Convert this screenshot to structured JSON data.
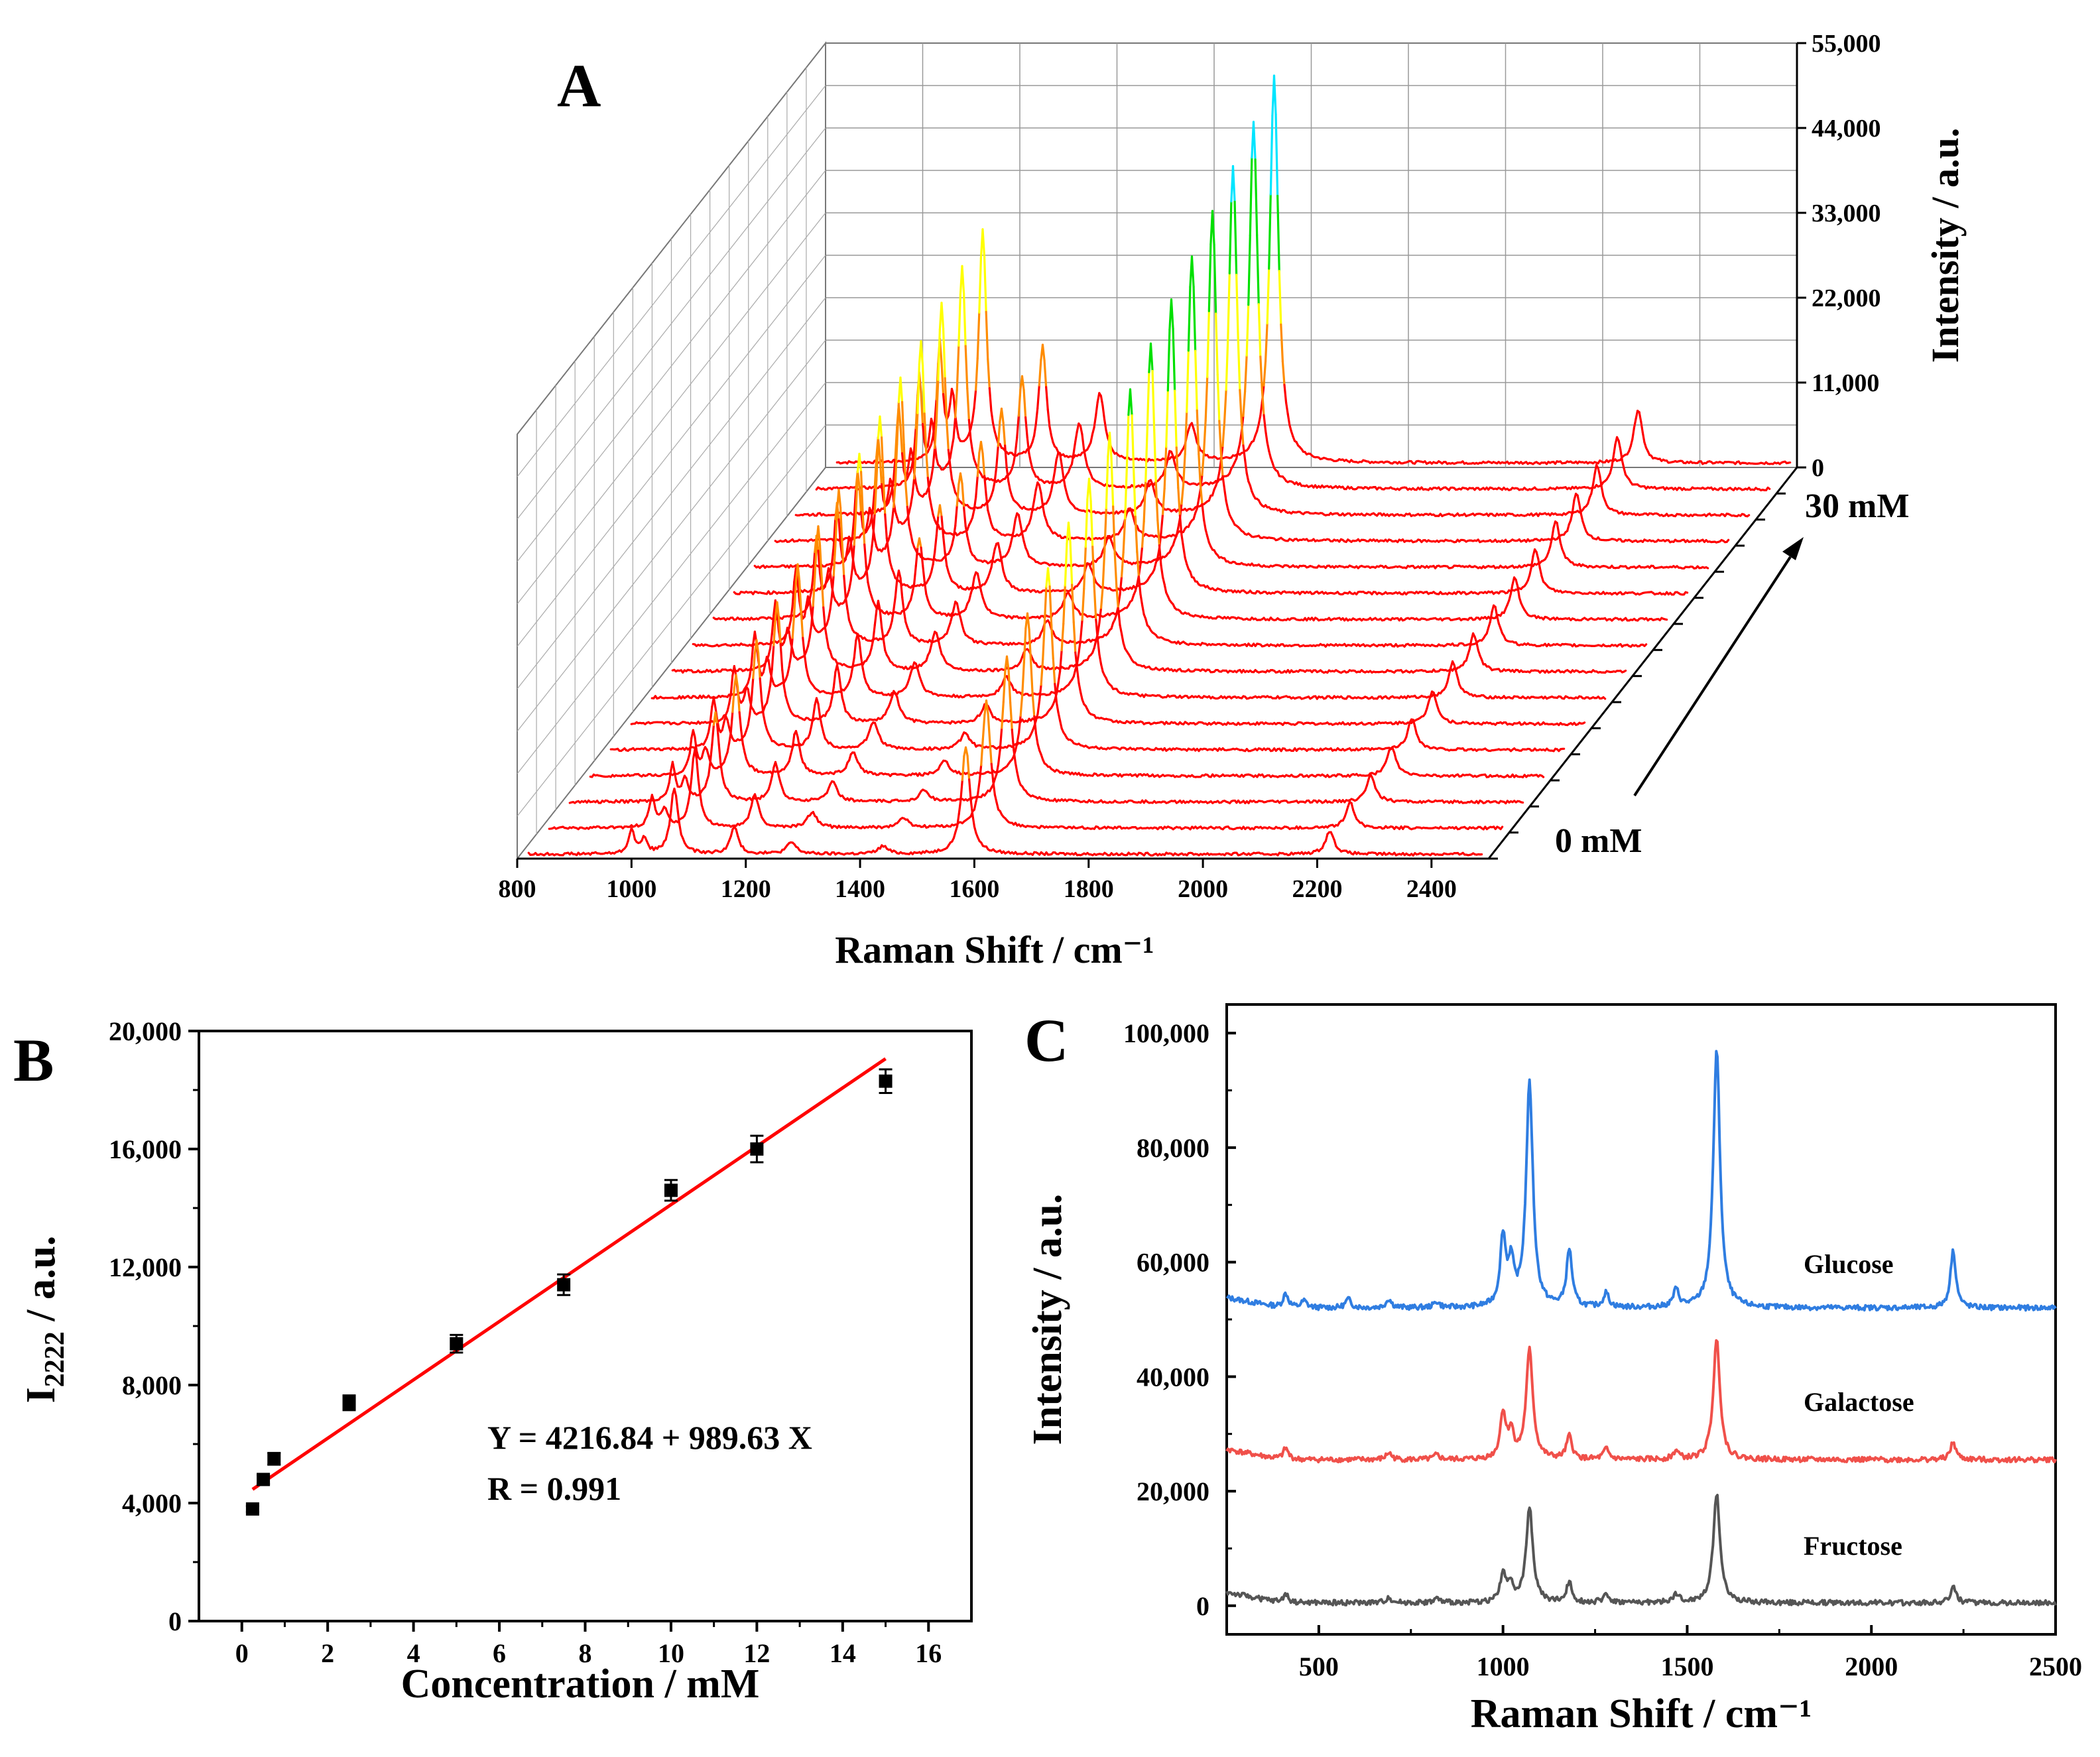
{
  "chart_data": [
    {
      "panel": "A",
      "type": "line",
      "panel_label": "A",
      "xlabel": "Raman Shift / cm⁻¹",
      "ylabel": "Intensity / a.u.",
      "xlim": [
        800,
        2500
      ],
      "ylim": [
        0,
        55000
      ],
      "x_ticks": [
        "800",
        "1000",
        "1200",
        "1400",
        "1600",
        "1800",
        "2000",
        "2200",
        "2400"
      ],
      "y_ticks": [
        "0",
        "11,000",
        "22,000",
        "33,000",
        "44,000",
        "55,000"
      ],
      "depth_label_front": "0 mM",
      "depth_label_back": "30 mM",
      "n_spectra": 16,
      "colormap": [
        "#ff0000",
        "#ff8c00",
        "#ffff00",
        "#00e000",
        "#00e5ff",
        "#0000ff"
      ],
      "peaks_cm-1": [
        1000,
        1022,
        1075,
        1180,
        1280,
        1440,
        1585,
        2222
      ],
      "peak_heights_front": [
        3200,
        2000,
        8500,
        3500,
        1500,
        1000,
        14000,
        3000
      ],
      "peak_heights_back": [
        15000,
        8000,
        30000,
        15000,
        9000,
        5000,
        50000,
        7000
      ]
    },
    {
      "panel": "B",
      "type": "scatter",
      "panel_label": "B",
      "xlabel": "Concentration / mM",
      "ylabel_main": "I",
      "ylabel_sub": "2222",
      "ylabel_unit": " / a.u.",
      "xlim": [
        -1,
        17
      ],
      "ylim": [
        0,
        20000
      ],
      "x_ticks": [
        "0",
        "2",
        "4",
        "6",
        "8",
        "10",
        "12",
        "14",
        "16"
      ],
      "y_ticks": [
        "0",
        "4,000",
        "8,000",
        "12,000",
        "16,000",
        "20,000"
      ],
      "points": [
        {
          "x": 0.25,
          "y": 3800,
          "err": 100
        },
        {
          "x": 0.5,
          "y": 4800,
          "err": 150
        },
        {
          "x": 0.75,
          "y": 5500,
          "err": 200
        },
        {
          "x": 2.5,
          "y": 7400,
          "err": 250
        },
        {
          "x": 5,
          "y": 9400,
          "err": 300
        },
        {
          "x": 7.5,
          "y": 11400,
          "err": 350
        },
        {
          "x": 10,
          "y": 14600,
          "err": 350
        },
        {
          "x": 12,
          "y": 16000,
          "err": 450
        },
        {
          "x": 15,
          "y": 18300,
          "err": 400
        }
      ],
      "fit": {
        "intercept": 4216.84,
        "slope": 989.63,
        "x_range": [
          0.25,
          15
        ],
        "color": "#ff0000"
      },
      "equation": "Y = 4216.84 + 989.63 X",
      "r_value": "R = 0.991"
    },
    {
      "panel": "C",
      "type": "line",
      "panel_label": "C",
      "xlabel": "Raman Shift / cm⁻¹",
      "ylabel": "Intensity / a.u.",
      "xlim": [
        250,
        2500
      ],
      "ylim": [
        -5000,
        105000
      ],
      "x_ticks": [
        "500",
        "1000",
        "1500",
        "2000",
        "2500"
      ],
      "y_ticks": [
        "0",
        "20,000",
        "40,000",
        "60,000",
        "80,000",
        "100,000"
      ],
      "series": [
        {
          "name": "Glucose",
          "color": "#2f7de1",
          "baseline": 52000,
          "peaks": [
            [
              410,
              2500
            ],
            [
              460,
              1200
            ],
            [
              580,
              1500
            ],
            [
              690,
              1500
            ],
            [
              820,
              1000
            ],
            [
              1000,
              12000
            ],
            [
              1022,
              7000
            ],
            [
              1072,
              39000
            ],
            [
              1180,
              10000
            ],
            [
              1280,
              2500
            ],
            [
              1470,
              3000
            ],
            [
              1580,
              45000
            ],
            [
              2222,
              10000
            ]
          ]
        },
        {
          "name": "Galactose",
          "color": "#f0504a",
          "baseline": 25500,
          "peaks": [
            [
              410,
              2000
            ],
            [
              690,
              1200
            ],
            [
              820,
              800
            ],
            [
              1000,
              8000
            ],
            [
              1022,
              4500
            ],
            [
              1072,
              19000
            ],
            [
              1180,
              4000
            ],
            [
              1280,
              1800
            ],
            [
              1470,
              1500
            ],
            [
              1580,
              21000
            ],
            [
              2222,
              3000
            ]
          ]
        },
        {
          "name": "Fructose",
          "color": "#555555",
          "baseline": 500,
          "peaks": [
            [
              410,
              1500
            ],
            [
              690,
              900
            ],
            [
              820,
              700
            ],
            [
              1000,
              5000
            ],
            [
              1022,
              3000
            ],
            [
              1072,
              16500
            ],
            [
              1180,
              3500
            ],
            [
              1280,
              1500
            ],
            [
              1470,
              1500
            ],
            [
              1580,
              19000
            ],
            [
              2222,
              2800
            ]
          ]
        }
      ]
    }
  ]
}
